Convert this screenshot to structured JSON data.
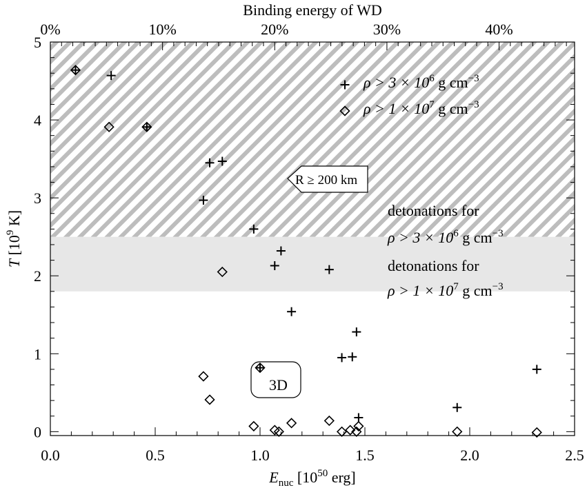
{
  "chart_data": {
    "type": "scatter",
    "xlabel": {
      "main": "E",
      "sub": "nuc",
      "rest_pre": " [10",
      "sup": "50",
      "rest_post": " erg]"
    },
    "ylabel": {
      "main": "T",
      "rest_pre": " [10",
      "sup": "9",
      "rest_post": " K]"
    },
    "top_axis_label": "Binding energy of WD",
    "xlim": [
      0.0,
      2.5
    ],
    "ylim": [
      -0.05,
      5.0
    ],
    "x_ticks": [
      {
        "value": 0.0,
        "label": "0.0"
      },
      {
        "value": 0.5,
        "label": "0.5"
      },
      {
        "value": 1.0,
        "label": "1.0"
      },
      {
        "value": 1.5,
        "label": "1.5"
      },
      {
        "value": 2.0,
        "label": "2.0"
      },
      {
        "value": 2.5,
        "label": "2.5"
      }
    ],
    "y_ticks": [
      {
        "value": 0,
        "label": "0"
      },
      {
        "value": 1,
        "label": "1"
      },
      {
        "value": 2,
        "label": "2"
      },
      {
        "value": 3,
        "label": "3"
      },
      {
        "value": 4,
        "label": "4"
      },
      {
        "value": 5,
        "label": "5"
      }
    ],
    "top_ticks": [
      {
        "value": 0.0,
        "label": "0%"
      },
      {
        "value": 0.535,
        "label": "10%"
      },
      {
        "value": 1.07,
        "label": "20%"
      },
      {
        "value": 1.605,
        "label": "30%"
      },
      {
        "value": 2.14,
        "label": "40%"
      }
    ],
    "regions": [
      {
        "name": "hatched",
        "y_from": 2.5,
        "y_to": 5.0
      },
      {
        "name": "shaded",
        "y_from": 1.8,
        "y_to": 2.5
      }
    ],
    "region_labels": [
      {
        "line1": "detonations for",
        "line2_pre": "ρ > 3 × 10",
        "sup": "6",
        "line2_post": " g cm",
        "sup2": "−3"
      },
      {
        "line1": "detonations for",
        "line2_pre": "ρ > 1 × 10",
        "sup": "7",
        "line2_post": " g cm",
        "sup2": "−3"
      }
    ],
    "legend": [
      {
        "marker": "plus",
        "pre": "ρ > 3 × 10",
        "sup": "6",
        "post": " g cm",
        "sup2": "−3"
      },
      {
        "marker": "diamond",
        "pre": "ρ > 1 × 10",
        "sup": "7",
        "post": " g cm",
        "sup2": "−3"
      }
    ],
    "annotations": {
      "arrow_label": "R ≥ 200 km",
      "box_label": "3D"
    },
    "series": [
      {
        "marker": "plus",
        "points": [
          [
            0.29,
            4.57
          ],
          [
            0.76,
            3.45
          ],
          [
            0.82,
            3.47
          ],
          [
            0.73,
            2.97
          ],
          [
            0.97,
            2.6
          ],
          [
            1.1,
            2.32
          ],
          [
            1.07,
            2.13
          ],
          [
            1.33,
            2.08
          ],
          [
            1.15,
            1.54
          ],
          [
            1.46,
            1.28
          ],
          [
            1.39,
            0.95
          ],
          [
            1.44,
            0.96
          ],
          [
            2.32,
            0.8
          ],
          [
            1.94,
            0.31
          ],
          [
            1.47,
            0.18
          ],
          [
            0.12,
            4.64
          ],
          [
            0.46,
            3.91
          ],
          [
            1.0,
            0.82
          ]
        ]
      },
      {
        "marker": "diamond",
        "points": [
          [
            0.12,
            4.64
          ],
          [
            0.46,
            3.91
          ],
          [
            1.0,
            0.82
          ],
          [
            0.28,
            3.91
          ],
          [
            0.82,
            2.05
          ],
          [
            0.73,
            0.71
          ],
          [
            0.76,
            0.41
          ],
          [
            0.97,
            0.07
          ],
          [
            1.07,
            0.02
          ],
          [
            1.09,
            0.0
          ],
          [
            1.15,
            0.11
          ],
          [
            1.33,
            0.14
          ],
          [
            1.39,
            0.0
          ],
          [
            1.43,
            0.02
          ],
          [
            1.46,
            0.0
          ],
          [
            1.47,
            0.07
          ],
          [
            1.94,
            0.0
          ],
          [
            2.32,
            -0.01
          ]
        ]
      }
    ]
  }
}
